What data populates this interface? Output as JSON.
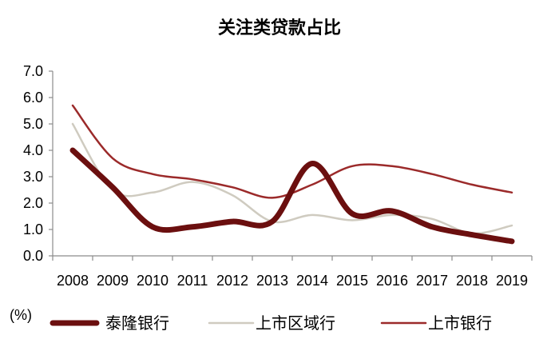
{
  "chart_data": {
    "type": "line",
    "title": "关注类贷款占比",
    "unit_label": "(%)",
    "categories": [
      "2008",
      "2009",
      "2010",
      "2011",
      "2012",
      "2013",
      "2014",
      "2015",
      "2016",
      "2017",
      "2018",
      "2019"
    ],
    "ylim": [
      0,
      7
    ],
    "yticks": [
      "0.0",
      "1.0",
      "2.0",
      "3.0",
      "4.0",
      "5.0",
      "6.0",
      "7.0"
    ],
    "grid": false,
    "legend_position": "bottom",
    "series": [
      {
        "name": "泰隆银行",
        "color": "#6b0f0f",
        "width": 7,
        "values": [
          4.0,
          2.6,
          1.1,
          1.1,
          1.3,
          1.3,
          3.5,
          1.6,
          1.7,
          1.1,
          0.8,
          0.55
        ]
      },
      {
        "name": "上市区域行",
        "color": "#cfcbc0",
        "width": 2.5,
        "values": [
          5.0,
          2.5,
          2.4,
          2.8,
          2.3,
          1.3,
          1.55,
          1.35,
          1.55,
          1.4,
          0.85,
          1.15
        ]
      },
      {
        "name": "上市银行",
        "color": "#9b2a2a",
        "width": 2.5,
        "values": [
          5.7,
          3.7,
          3.1,
          2.9,
          2.6,
          2.2,
          2.7,
          3.4,
          3.4,
          3.1,
          2.7,
          2.4
        ]
      }
    ]
  }
}
